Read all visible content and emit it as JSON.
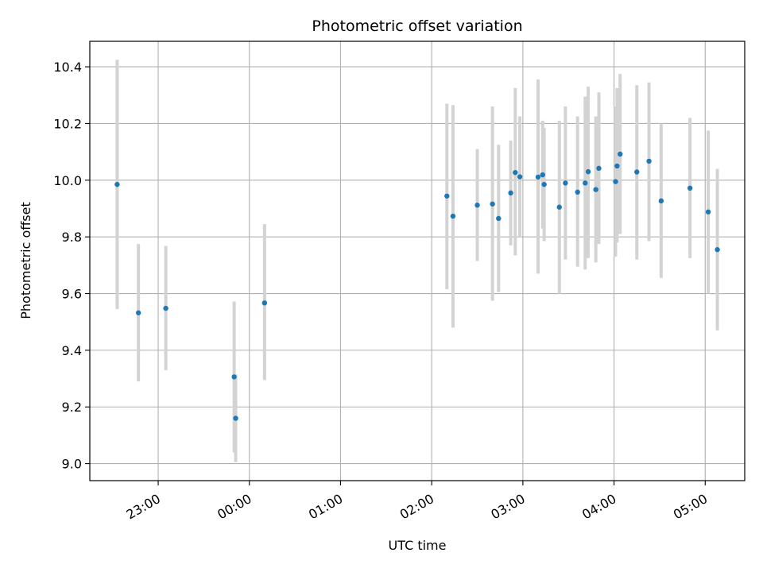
{
  "chart_data": {
    "type": "scatter",
    "title": "Photometric offset variation",
    "xlabel": "UTC time",
    "ylabel": "Photometric offset",
    "x_unit": "UTC time of day; times after midnight are written above 24:00 (e.g. 25:00 = 01:00 next day)",
    "xlim": [
      "22:15",
      "29:26"
    ],
    "ylim": [
      8.94,
      10.49
    ],
    "x_ticks": [
      {
        "value": "23:00",
        "label": "23:00"
      },
      {
        "value": "24:00",
        "label": "00:00"
      },
      {
        "value": "25:00",
        "label": "01:00"
      },
      {
        "value": "26:00",
        "label": "02:00"
      },
      {
        "value": "27:00",
        "label": "03:00"
      },
      {
        "value": "28:00",
        "label": "04:00"
      },
      {
        "value": "29:00",
        "label": "05:00"
      }
    ],
    "y_ticks": [
      9.0,
      9.2,
      9.4,
      9.6,
      9.8,
      10.0,
      10.2,
      10.4
    ],
    "grid": true,
    "legend": "none",
    "colors": {
      "point": "#1f77b4",
      "errorbar": "#d3d3d3",
      "grid": "#b0b0b0"
    },
    "series": [
      {
        "points": [
          {
            "x": "22:33",
            "y": 9.985,
            "lo": 9.545,
            "hi": 10.425
          },
          {
            "x": "22:47",
            "y": 9.532,
            "lo": 9.29,
            "hi": 9.775
          },
          {
            "x": "23:05",
            "y": 9.548,
            "lo": 9.33,
            "hi": 9.768
          },
          {
            "x": "23:50",
            "y": 9.306,
            "lo": 9.04,
            "hi": 9.572
          },
          {
            "x": "23:51",
            "y": 9.16,
            "lo": 9.005,
            "hi": 9.315
          },
          {
            "x": "24:10",
            "y": 9.567,
            "lo": 9.295,
            "hi": 9.845
          },
          {
            "x": "26:10",
            "y": 9.944,
            "lo": 9.615,
            "hi": 10.27
          },
          {
            "x": "26:14",
            "y": 9.873,
            "lo": 9.48,
            "hi": 10.265
          },
          {
            "x": "26:30",
            "y": 9.912,
            "lo": 9.715,
            "hi": 10.11
          },
          {
            "x": "26:40",
            "y": 9.916,
            "lo": 9.575,
            "hi": 10.26
          },
          {
            "x": "26:44",
            "y": 9.865,
            "lo": 9.605,
            "hi": 10.125
          },
          {
            "x": "26:52",
            "y": 9.955,
            "lo": 9.77,
            "hi": 10.14
          },
          {
            "x": "26:55",
            "y": 10.027,
            "lo": 9.735,
            "hi": 10.325
          },
          {
            "x": "26:58",
            "y": 10.012,
            "lo": 9.8,
            "hi": 10.225
          },
          {
            "x": "27:10",
            "y": 10.011,
            "lo": 9.67,
            "hi": 10.355
          },
          {
            "x": "27:13",
            "y": 10.019,
            "lo": 9.83,
            "hi": 10.21
          },
          {
            "x": "27:14",
            "y": 9.985,
            "lo": 9.785,
            "hi": 10.185
          },
          {
            "x": "27:24",
            "y": 9.905,
            "lo": 9.6,
            "hi": 10.21
          },
          {
            "x": "27:28",
            "y": 9.99,
            "lo": 9.72,
            "hi": 10.26
          },
          {
            "x": "27:36",
            "y": 9.958,
            "lo": 9.695,
            "hi": 10.225
          },
          {
            "x": "27:41",
            "y": 9.99,
            "lo": 9.685,
            "hi": 10.295
          },
          {
            "x": "27:43",
            "y": 10.03,
            "lo": 9.725,
            "hi": 10.33
          },
          {
            "x": "27:48",
            "y": 9.967,
            "lo": 9.71,
            "hi": 10.225
          },
          {
            "x": "27:50",
            "y": 10.042,
            "lo": 9.775,
            "hi": 10.31
          },
          {
            "x": "28:01",
            "y": 9.995,
            "lo": 9.73,
            "hi": 10.26
          },
          {
            "x": "28:02",
            "y": 10.05,
            "lo": 9.78,
            "hi": 10.325
          },
          {
            "x": "28:04",
            "y": 10.092,
            "lo": 9.81,
            "hi": 10.375
          },
          {
            "x": "28:15",
            "y": 10.029,
            "lo": 9.72,
            "hi": 10.335
          },
          {
            "x": "28:23",
            "y": 10.067,
            "lo": 9.785,
            "hi": 10.345
          },
          {
            "x": "28:31",
            "y": 9.927,
            "lo": 9.655,
            "hi": 10.2
          },
          {
            "x": "28:50",
            "y": 9.972,
            "lo": 9.725,
            "hi": 10.22
          },
          {
            "x": "29:02",
            "y": 9.888,
            "lo": 9.6,
            "hi": 10.175
          },
          {
            "x": "29:08",
            "y": 9.755,
            "lo": 9.47,
            "hi": 10.04
          }
        ]
      }
    ]
  }
}
